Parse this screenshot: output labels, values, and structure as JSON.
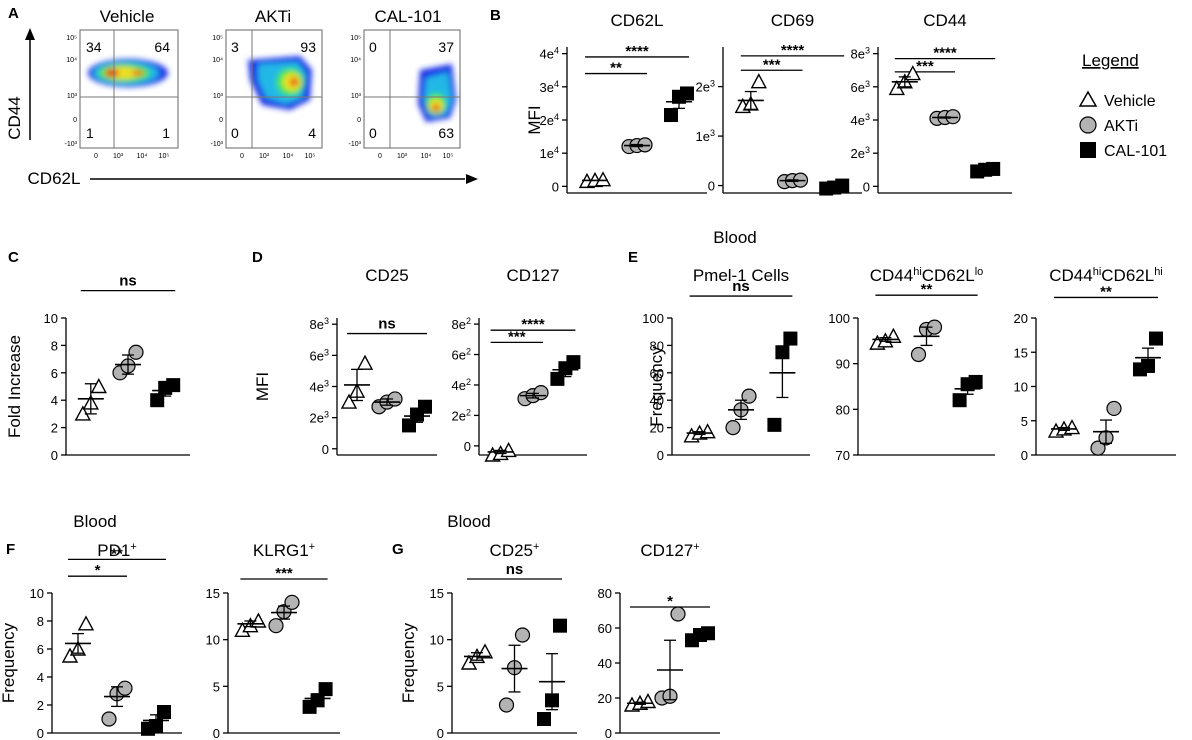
{
  "flow": {
    "panels": [
      {
        "title": "Vehicle",
        "quadrants": {
          "tl": "34",
          "tr": "64",
          "bl": "1",
          "br": "1"
        }
      },
      {
        "title": "AKTi",
        "quadrants": {
          "tl": "3",
          "tr": "93",
          "bl": "0",
          "br": "4"
        }
      },
      {
        "title": "CAL-101",
        "quadrants": {
          "tl": "0",
          "tr": "37",
          "bl": "0",
          "br": "63"
        }
      }
    ],
    "xlabel": "CD62L",
    "ylabel": "CD44",
    "x_ticks": [
      "0",
      "10³",
      "10⁴",
      "10⁵"
    ],
    "y_ticks": [
      "10⁵",
      "10⁴",
      "10³",
      "0",
      "-10³"
    ]
  },
  "legend": {
    "title": "Legend",
    "items": [
      {
        "label": "Vehicle",
        "marker": "triangle"
      },
      {
        "label": "AKTi",
        "marker": "circle"
      },
      {
        "label": "CAL-101",
        "marker": "square"
      }
    ]
  },
  "colors": {
    "circle_fill": "#b3b3b3",
    "square_fill": "#000000",
    "flow_blue": "#1a33e6",
    "flow_red": "#e61a1a"
  },
  "chart_data": [
    {
      "id": "B1",
      "letter": "B",
      "header": "",
      "type": "scatter",
      "title": "CD62L",
      "ylabel": "MFI",
      "yticks": [
        {
          "v": 0,
          "l": "0"
        },
        {
          "v": 10000,
          "l": "1e4"
        },
        {
          "v": 20000,
          "l": "2e4"
        },
        {
          "v": 30000,
          "l": "3e4"
        },
        {
          "v": 40000,
          "l": "4e4"
        }
      ],
      "ylim": [
        -2000,
        42000
      ],
      "groups": [
        {
          "name": "Vehicle",
          "marker": "triangle",
          "points": [
            1500,
            1800,
            2000
          ],
          "mean": 1800,
          "sem": 0
        },
        {
          "name": "AKTi",
          "marker": "circle",
          "points": [
            12000,
            12300,
            12500
          ],
          "mean": 12300,
          "sem": 300
        },
        {
          "name": "CAL-101",
          "marker": "square",
          "points": [
            21500,
            27000,
            28000
          ],
          "mean": 25500,
          "sem": 2000
        }
      ],
      "sig": [
        {
          "from": 0,
          "to": 1,
          "label": "**",
          "y": 34000
        },
        {
          "from": 0,
          "to": 2,
          "label": "****",
          "y": 39000
        }
      ]
    },
    {
      "id": "B2",
      "letter": "",
      "header": "",
      "type": "scatter",
      "title": "CD69",
      "ylabel": "",
      "yticks": [
        {
          "v": 0,
          "l": "0"
        },
        {
          "v": 1000,
          "l": "1e3"
        },
        {
          "v": 2000,
          "l": "2e3"
        }
      ],
      "ylim": [
        -150,
        2800
      ],
      "groups": [
        {
          "name": "Vehicle",
          "marker": "triangle",
          "points": [
            1600,
            1650,
            2100
          ],
          "mean": 1720,
          "sem": 180
        },
        {
          "name": "AKTi",
          "marker": "circle",
          "points": [
            80,
            100,
            110
          ],
          "mean": 100,
          "sem": 15
        },
        {
          "name": "CAL-101",
          "marker": "square",
          "points": [
            -60,
            -40,
            0
          ],
          "mean": -30,
          "sem": 20
        }
      ],
      "sig": [
        {
          "from": 0,
          "to": 1,
          "label": "***",
          "y": 2330
        },
        {
          "from": 0,
          "to": 2,
          "label": "****",
          "y": 2620
        }
      ]
    },
    {
      "id": "B3",
      "letter": "",
      "header": "",
      "type": "scatter",
      "title": "CD44",
      "ylabel": "",
      "yticks": [
        {
          "v": 0,
          "l": "0"
        },
        {
          "v": 2000,
          "l": "2e3"
        },
        {
          "v": 4000,
          "l": "4e3"
        },
        {
          "v": 6000,
          "l": "6e3"
        },
        {
          "v": 8000,
          "l": "8e3"
        }
      ],
      "ylim": [
        -400,
        8400
      ],
      "groups": [
        {
          "name": "Vehicle",
          "marker": "triangle",
          "points": [
            5900,
            6300,
            6800
          ],
          "mean": 6300,
          "sem": 300
        },
        {
          "name": "AKTi",
          "marker": "circle",
          "points": [
            4100,
            4150,
            4200
          ],
          "mean": 4150,
          "sem": 30
        },
        {
          "name": "CAL-101",
          "marker": "square",
          "points": [
            900,
            1000,
            1050
          ],
          "mean": 1000,
          "sem": 50
        }
      ],
      "sig": [
        {
          "from": 0,
          "to": 1,
          "label": "***",
          "y": 6900
        },
        {
          "from": 0,
          "to": 2,
          "label": "****",
          "y": 7700
        }
      ]
    },
    {
      "id": "C",
      "letter": "C",
      "header": "",
      "type": "scatter",
      "title": "",
      "ylabel": "Fold Increase",
      "yticks": [
        {
          "v": 0,
          "l": "0"
        },
        {
          "v": 2,
          "l": "2"
        },
        {
          "v": 4,
          "l": "4"
        },
        {
          "v": 6,
          "l": "6"
        },
        {
          "v": 8,
          "l": "8"
        },
        {
          "v": 10,
          "l": "10"
        }
      ],
      "ylim": [
        0,
        10
      ],
      "groups": [
        {
          "name": "Vehicle",
          "marker": "triangle",
          "points": [
            3,
            3.8,
            5
          ],
          "mean": 4.1,
          "sem": 1.1
        },
        {
          "name": "AKTi",
          "marker": "circle",
          "points": [
            6,
            6.5,
            7.5
          ],
          "mean": 6.6,
          "sem": 0.7
        },
        {
          "name": "CAL-101",
          "marker": "square",
          "points": [
            4,
            4.9,
            5.1
          ],
          "mean": 4.7,
          "sem": 0.4
        }
      ],
      "sig": [
        {
          "from": 0,
          "to": 2,
          "label": "ns",
          "y": 12
        }
      ]
    },
    {
      "id": "D1",
      "letter": "D",
      "header": "",
      "type": "scatter",
      "title": "CD25",
      "ylabel": "MFI",
      "yticks": [
        {
          "v": 0,
          "l": "0"
        },
        {
          "v": 2000,
          "l": "2e3"
        },
        {
          "v": 4000,
          "l": "4e3"
        },
        {
          "v": 6000,
          "l": "6e3"
        },
        {
          "v": 8000,
          "l": "8e3"
        }
      ],
      "ylim": [
        -400,
        8400
      ],
      "groups": [
        {
          "name": "Vehicle",
          "marker": "triangle",
          "points": [
            3000,
            3700,
            5500
          ],
          "mean": 4100,
          "sem": 1000
        },
        {
          "name": "AKTi",
          "marker": "circle",
          "points": [
            2700,
            3000,
            3200
          ],
          "mean": 3000,
          "sem": 200
        },
        {
          "name": "CAL-101",
          "marker": "square",
          "points": [
            1500,
            2200,
            2700
          ],
          "mean": 2100,
          "sem": 400
        }
      ],
      "sig": [
        {
          "from": 0,
          "to": 2,
          "label": "ns",
          "y": 7400
        }
      ]
    },
    {
      "id": "D2",
      "letter": "",
      "header": "",
      "type": "scatter",
      "title": "CD127",
      "ylabel": "",
      "yticks": [
        {
          "v": 0,
          "l": "0"
        },
        {
          "v": 200,
          "l": "2e2"
        },
        {
          "v": 400,
          "l": "4e2"
        },
        {
          "v": 600,
          "l": "6e2"
        },
        {
          "v": 800,
          "l": "8e2"
        }
      ],
      "ylim": [
        -60,
        840
      ],
      "groups": [
        {
          "name": "Vehicle",
          "marker": "triangle",
          "points": [
            -60,
            -50,
            -30
          ],
          "mean": -40,
          "sem": 10
        },
        {
          "name": "AKTi",
          "marker": "circle",
          "points": [
            310,
            330,
            350
          ],
          "mean": 330,
          "sem": 15
        },
        {
          "name": "CAL-101",
          "marker": "square",
          "points": [
            440,
            510,
            550
          ],
          "mean": 500,
          "sem": 45
        }
      ],
      "sig": [
        {
          "from": 0,
          "to": 1,
          "label": "***",
          "y": 680
        },
        {
          "from": 0,
          "to": 2,
          "label": "****",
          "y": 760
        }
      ]
    },
    {
      "id": "E1",
      "letter": "E",
      "header": "Blood",
      "type": "scatter",
      "title": "Pmel-1 Cells",
      "ylabel": "Frequency",
      "yticks": [
        {
          "v": 0,
          "l": "0"
        },
        {
          "v": 20,
          "l": "20"
        },
        {
          "v": 40,
          "l": "40"
        },
        {
          "v": 60,
          "l": "60"
        },
        {
          "v": 80,
          "l": "80"
        },
        {
          "v": 100,
          "l": "100"
        }
      ],
      "ylim": [
        0,
        100
      ],
      "groups": [
        {
          "name": "Vehicle",
          "marker": "triangle",
          "points": [
            14,
            16,
            17
          ],
          "mean": 16,
          "sem": 1
        },
        {
          "name": "AKTi",
          "marker": "circle",
          "points": [
            20,
            33,
            43
          ],
          "mean": 33,
          "sem": 7
        },
        {
          "name": "CAL-101",
          "marker": "square",
          "points": [
            22,
            75,
            85
          ],
          "mean": 60,
          "sem": 18
        }
      ],
      "sig": [
        {
          "from": 0,
          "to": 2,
          "label": "ns",
          "y": 116
        }
      ]
    },
    {
      "id": "E2",
      "letter": "",
      "header": "",
      "type": "scatter",
      "title": "CD44",
      "title_sup1": "hi",
      "title_mid": "CD62L",
      "title_sup2": "lo",
      "ylabel": "",
      "yticks": [
        {
          "v": 70,
          "l": "70"
        },
        {
          "v": 80,
          "l": "80"
        },
        {
          "v": 90,
          "l": "90"
        },
        {
          "v": 100,
          "l": "100"
        }
      ],
      "ylim": [
        70,
        100
      ],
      "groups": [
        {
          "name": "Vehicle",
          "marker": "triangle",
          "points": [
            94.5,
            95,
            96
          ],
          "mean": 95.3,
          "sem": 0.4
        },
        {
          "name": "AKTi",
          "marker": "circle",
          "points": [
            92,
            97.5,
            98
          ],
          "mean": 96,
          "sem": 2
        },
        {
          "name": "CAL-101",
          "marker": "square",
          "points": [
            82,
            85.5,
            86
          ],
          "mean": 84.5,
          "sem": 1.2
        }
      ],
      "sig": [
        {
          "from": 0,
          "to": 2,
          "label": "**",
          "y": 105
        }
      ]
    },
    {
      "id": "E3",
      "letter": "",
      "header": "",
      "type": "scatter",
      "title": "CD44",
      "title_sup1": "hi",
      "title_mid": "CD62L",
      "title_sup2": "hi",
      "ylabel": "",
      "yticks": [
        {
          "v": 0,
          "l": "0"
        },
        {
          "v": 5,
          "l": "5"
        },
        {
          "v": 10,
          "l": "10"
        },
        {
          "v": 15,
          "l": "15"
        },
        {
          "v": 20,
          "l": "20"
        }
      ],
      "ylim": [
        0,
        20
      ],
      "groups": [
        {
          "name": "Vehicle",
          "marker": "triangle",
          "points": [
            3.5,
            3.8,
            4
          ],
          "mean": 3.8,
          "sem": 0.2
        },
        {
          "name": "AKTi",
          "marker": "circle",
          "points": [
            1,
            2.5,
            6.8
          ],
          "mean": 3.4,
          "sem": 1.7
        },
        {
          "name": "CAL-101",
          "marker": "square",
          "points": [
            12.5,
            13,
            17
          ],
          "mean": 14.2,
          "sem": 1.4
        }
      ],
      "sig": [
        {
          "from": 0,
          "to": 2,
          "label": "**",
          "y": 23
        }
      ]
    },
    {
      "id": "F1",
      "letter": "F",
      "header": "Blood",
      "type": "scatter",
      "title": "PD1",
      "title_sup1": "+",
      "ylabel": "Frequency",
      "yticks": [
        {
          "v": 0,
          "l": "0"
        },
        {
          "v": 2,
          "l": "2"
        },
        {
          "v": 4,
          "l": "4"
        },
        {
          "v": 6,
          "l": "6"
        },
        {
          "v": 8,
          "l": "8"
        },
        {
          "v": 10,
          "l": "10"
        }
      ],
      "ylim": [
        0,
        10
      ],
      "groups": [
        {
          "name": "Vehicle",
          "marker": "triangle",
          "points": [
            5.5,
            6,
            7.8
          ],
          "mean": 6.4,
          "sem": 0.7
        },
        {
          "name": "AKTi",
          "marker": "circle",
          "points": [
            1,
            2.8,
            3.2
          ],
          "mean": 2.6,
          "sem": 0.7
        },
        {
          "name": "CAL-101",
          "marker": "square",
          "points": [
            0.3,
            0.5,
            1.5
          ],
          "mean": 0.9,
          "sem": 0.4
        }
      ],
      "sig": [
        {
          "from": 0,
          "to": 1,
          "label": "*",
          "y": 11.2
        },
        {
          "from": 0,
          "to": 2,
          "label": "**",
          "y": 12.4
        }
      ]
    },
    {
      "id": "F2",
      "letter": "",
      "header": "",
      "type": "scatter",
      "title": "KLRG1",
      "title_sup1": "+",
      "ylabel": "",
      "yticks": [
        {
          "v": 0,
          "l": "0"
        },
        {
          "v": 5,
          "l": "5"
        },
        {
          "v": 10,
          "l": "10"
        },
        {
          "v": 15,
          "l": "15"
        }
      ],
      "ylim": [
        0,
        15
      ],
      "groups": [
        {
          "name": "Vehicle",
          "marker": "triangle",
          "points": [
            11,
            11.5,
            12
          ],
          "mean": 11.7,
          "sem": 0.3
        },
        {
          "name": "AKTi",
          "marker": "circle",
          "points": [
            11.5,
            13,
            14
          ],
          "mean": 12.9,
          "sem": 0.7
        },
        {
          "name": "CAL-101",
          "marker": "square",
          "points": [
            2.8,
            3.5,
            4.7
          ],
          "mean": 3.7,
          "sem": 0.5
        }
      ],
      "sig": [
        {
          "from": 0,
          "to": 2,
          "label": "***",
          "y": 16.5
        }
      ]
    },
    {
      "id": "G1",
      "letter": "G",
      "header": "Blood",
      "type": "scatter",
      "title": "CD25",
      "title_sup1": "+",
      "ylabel": "Frequency",
      "yticks": [
        {
          "v": 0,
          "l": "0"
        },
        {
          "v": 5,
          "l": "5"
        },
        {
          "v": 10,
          "l": "10"
        },
        {
          "v": 15,
          "l": "15"
        }
      ],
      "ylim": [
        0,
        15
      ],
      "groups": [
        {
          "name": "Vehicle",
          "marker": "triangle",
          "points": [
            7.5,
            8.2,
            8.7
          ],
          "mean": 8.2,
          "sem": 0.4
        },
        {
          "name": "AKTi",
          "marker": "circle",
          "points": [
            3,
            7,
            10.5
          ],
          "mean": 6.9,
          "sem": 2.5
        },
        {
          "name": "CAL-101",
          "marker": "square",
          "points": [
            1.5,
            3.5,
            11.5
          ],
          "mean": 5.5,
          "sem": 3.0
        }
      ],
      "sig": [
        {
          "from": 0,
          "to": 2,
          "label": "ns",
          "y": 16.5
        }
      ]
    },
    {
      "id": "G2",
      "letter": "",
      "header": "",
      "type": "scatter",
      "title": "CD127",
      "title_sup1": "+",
      "ylabel": "",
      "yticks": [
        {
          "v": 0,
          "l": "0"
        },
        {
          "v": 20,
          "l": "20"
        },
        {
          "v": 40,
          "l": "40"
        },
        {
          "v": 60,
          "l": "60"
        },
        {
          "v": 80,
          "l": "80"
        }
      ],
      "ylim": [
        0,
        80
      ],
      "groups": [
        {
          "name": "Vehicle",
          "marker": "triangle",
          "points": [
            16,
            17,
            18
          ],
          "mean": 17,
          "sem": 0.6
        },
        {
          "name": "AKTi",
          "marker": "circle",
          "points": [
            20,
            21,
            68
          ],
          "mean": 36,
          "sem": 17
        },
        {
          "name": "CAL-101",
          "marker": "square",
          "points": [
            53,
            56,
            57
          ],
          "mean": 55.5,
          "sem": 1.2
        }
      ],
      "sig": [
        {
          "from": 0,
          "to": 2,
          "label": "*",
          "y": 72
        }
      ]
    }
  ]
}
